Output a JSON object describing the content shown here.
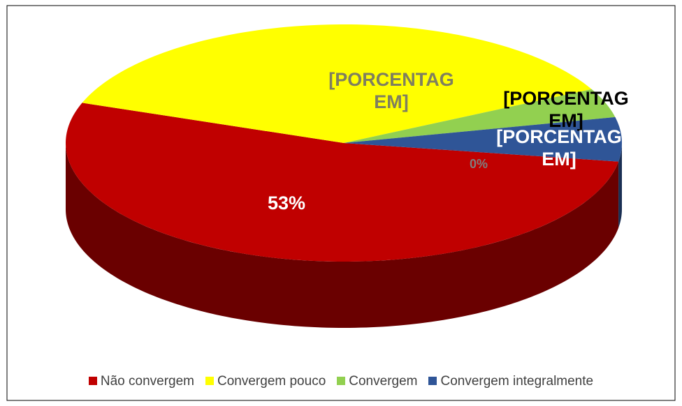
{
  "chart_data": {
    "type": "pie",
    "categories": [
      "Não convergem",
      "Convergem pouco",
      "Convergem",
      "Convergem integralmente",
      null
    ],
    "values": [
      53,
      37,
      4,
      6,
      0
    ],
    "value_labels": [
      "53%",
      "[PORCENTAGEM]",
      "[PORCENTAGEM]",
      "[PORCENTAGEM]",
      "0%"
    ],
    "colors": [
      "#c00000",
      "#ffff00",
      "#92d050",
      "#2f5597",
      "#7f7f7f"
    ],
    "legend": "bottom"
  }
}
